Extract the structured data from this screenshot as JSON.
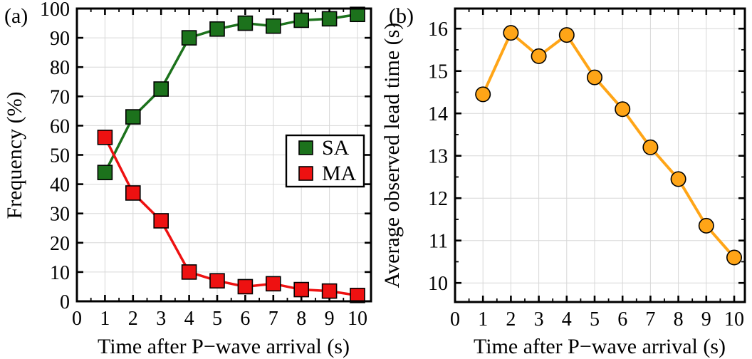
{
  "colors": {
    "sa_green": "#1c721c",
    "ma_red": "#ee1111",
    "lead_orange": "#ffa517",
    "marker_edge": "#000000",
    "grid": "#d7d7d7",
    "axis": "#000000",
    "background": "#ffffff"
  },
  "figure": {
    "panel_a": {
      "label": "(a)",
      "xlabel": "Time after P−wave arrival (s)",
      "ylabel": "Frequency (%)",
      "legend": {
        "items": [
          {
            "label": "SA",
            "color": "#1c721c"
          },
          {
            "label": "MA",
            "color": "#ee1111"
          }
        ]
      }
    },
    "panel_b": {
      "label": "(b)",
      "xlabel": "Time after P−wave arrival (s)",
      "ylabel": "Average observed lead time (s)"
    }
  },
  "chart_data": [
    {
      "type": "line",
      "panel": "a",
      "title": "",
      "xlabel": "Time after P−wave arrival (s)",
      "ylabel": "Frequency (%)",
      "x": [
        1,
        2,
        3,
        4,
        5,
        6,
        7,
        8,
        9,
        10
      ],
      "series": [
        {
          "id": "sa",
          "name": "SA",
          "color": "#1c721c",
          "marker": "square",
          "values": [
            44,
            63,
            72.5,
            90,
            93,
            95,
            94,
            96,
            96.5,
            98
          ]
        },
        {
          "id": "ma",
          "name": "MA",
          "color": "#ee1111",
          "marker": "square",
          "values": [
            56,
            37,
            27.5,
            10,
            7,
            5,
            6,
            4,
            3.5,
            2
          ]
        }
      ],
      "xlim": [
        0,
        10.45
      ],
      "ylim": [
        0,
        100
      ],
      "x_ticks": [
        0,
        1,
        2,
        3,
        4,
        5,
        6,
        7,
        8,
        9,
        10
      ],
      "y_ticks": [
        0,
        10,
        20,
        30,
        40,
        50,
        60,
        70,
        80,
        90,
        100
      ],
      "grid": true,
      "legend_position": "right-middle"
    },
    {
      "type": "line",
      "panel": "b",
      "title": "",
      "xlabel": "Time after P−wave arrival (s)",
      "ylabel": "Average observed lead time (s)",
      "x": [
        1,
        2,
        3,
        4,
        5,
        6,
        7,
        8,
        9,
        10
      ],
      "series": [
        {
          "id": "lead-time",
          "name": "Average observed lead time",
          "color": "#ffa517",
          "marker": "circle",
          "values": [
            14.45,
            15.9,
            15.35,
            15.85,
            14.85,
            14.1,
            13.2,
            12.45,
            11.35,
            10.6
          ]
        }
      ],
      "xlim": [
        0,
        10.4
      ],
      "ylim": [
        9.55,
        16.47
      ],
      "x_ticks": [
        0,
        1,
        2,
        3,
        4,
        5,
        6,
        7,
        8,
        9,
        10
      ],
      "y_ticks": [
        10,
        11,
        12,
        13,
        14,
        15,
        16
      ],
      "grid": true,
      "legend_position": "none"
    }
  ]
}
